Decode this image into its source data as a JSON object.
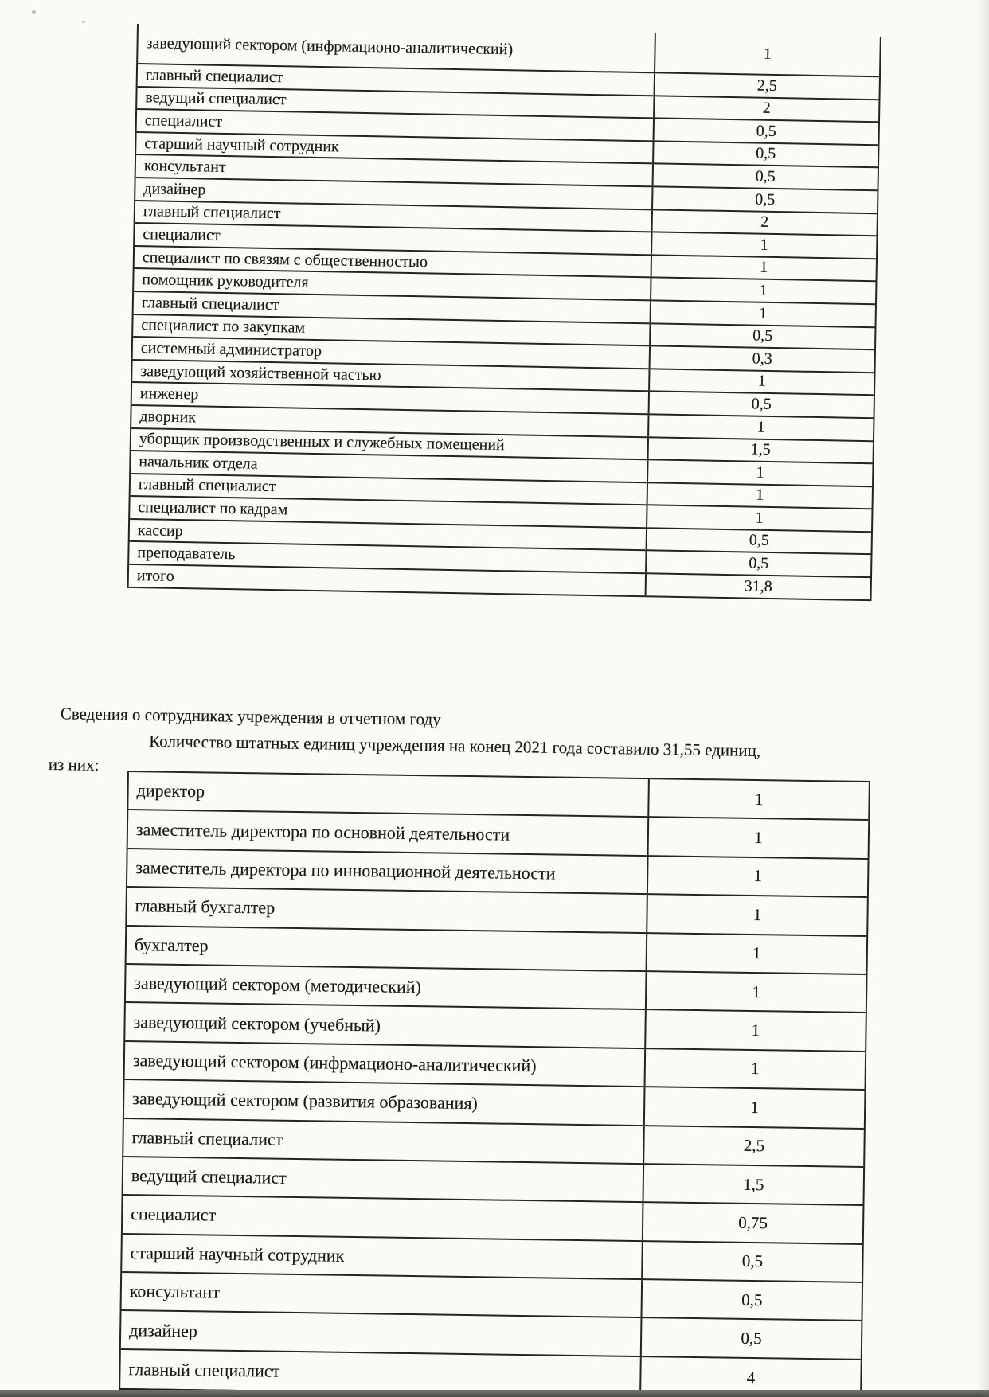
{
  "table1": {
    "rows": [
      {
        "label": "заведующий сектором (инфрмационо-аналитический)",
        "value": "1"
      },
      {
        "label": "главный специалист",
        "value": "2,5"
      },
      {
        "label": "ведущий специалист",
        "value": "2"
      },
      {
        "label": "специалист",
        "value": "0,5"
      },
      {
        "label": "старший научный сотрудник",
        "value": "0,5"
      },
      {
        "label": "консультант",
        "value": "0,5"
      },
      {
        "label": "дизайнер",
        "value": "0,5"
      },
      {
        "label": "главный специалист",
        "value": "2"
      },
      {
        "label": "специалист",
        "value": "1"
      },
      {
        "label": "специалист по связям с общественностью",
        "value": "1"
      },
      {
        "label": "помощник руководителя",
        "value": "1"
      },
      {
        "label": "главный специалист",
        "value": "1"
      },
      {
        "label": "специалист по закупкам",
        "value": "0,5"
      },
      {
        "label": "системный администратор",
        "value": "0,3"
      },
      {
        "label": "заведующий хозяйственной частью",
        "value": "1"
      },
      {
        "label": "инженер",
        "value": "0,5"
      },
      {
        "label": "дворник",
        "value": "1"
      },
      {
        "label": "уборщик производственных  и служебных помещений",
        "value": "1,5"
      },
      {
        "label": "начальник отдела",
        "value": "1"
      },
      {
        "label": "главный специалист",
        "value": "1"
      },
      {
        "label": "специалист по кадрам",
        "value": "1"
      },
      {
        "label": "кассир",
        "value": "0,5"
      },
      {
        "label": "преподаватель",
        "value": "0,5"
      },
      {
        "label": "итого",
        "value": "31,8"
      }
    ]
  },
  "paragraph": {
    "heading": "Сведения о сотрудниках учреждения в отчетном году",
    "sentence": "Количество штатных единиц учреждения на конец 2021 года составило 31,55 единиц,",
    "continuation": "из них:"
  },
  "table2": {
    "rows": [
      {
        "label": "директор",
        "value": "1"
      },
      {
        "label": "заместитель директора по основной деятельности",
        "value": "1"
      },
      {
        "label": "заместитель директора по инновационной деятельности",
        "value": "1"
      },
      {
        "label": "главный бухгалтер",
        "value": "1"
      },
      {
        "label": "бухгалтер",
        "value": "1"
      },
      {
        "label": "заведующий сектором (методический)",
        "value": "1"
      },
      {
        "label": "заведующий сектором (учебный)",
        "value": "1"
      },
      {
        "label": "заведующий сектором (инфрмационо-аналитический)",
        "value": "1"
      },
      {
        "label": "заведующий сектором (развития образования)",
        "value": "1"
      },
      {
        "label": "главный специалист",
        "value": "2,5"
      },
      {
        "label": "ведущий специалист",
        "value": "1,5"
      },
      {
        "label": "специалист",
        "value": "0,75"
      },
      {
        "label": "старший научный сотрудник",
        "value": "0,5"
      },
      {
        "label": "консультант",
        "value": "0,5"
      },
      {
        "label": "дизайнер",
        "value": "0,5"
      },
      {
        "label": "главный специалист",
        "value": "4"
      }
    ]
  }
}
